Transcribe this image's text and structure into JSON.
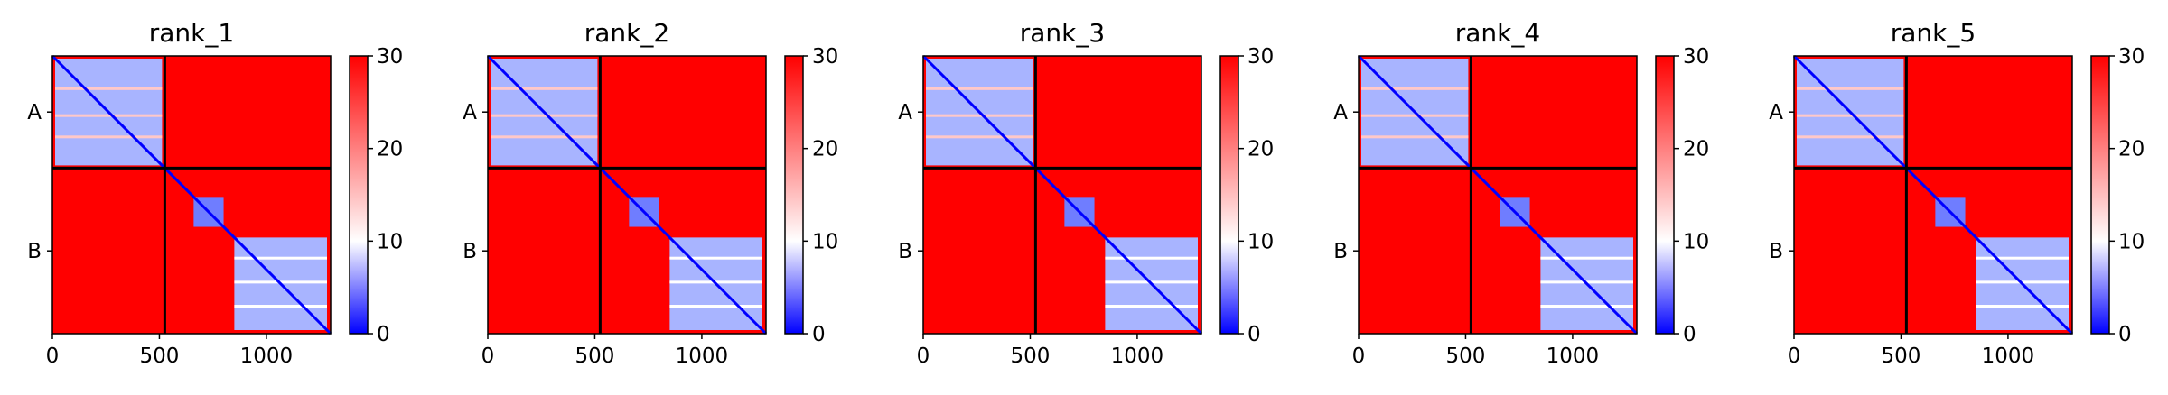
{
  "chart_data": [
    {
      "type": "heatmap",
      "title": "rank_1",
      "x_ticks": [
        0,
        500,
        1000
      ],
      "y_tick_labels": [
        "A",
        "B"
      ],
      "xlim": [
        0,
        1300
      ],
      "chain_boundary": 525,
      "chain_b_domain": 850,
      "colorbar": {
        "min": 0,
        "max": 30,
        "ticks": [
          0,
          10,
          20,
          30
        ]
      }
    },
    {
      "type": "heatmap",
      "title": "rank_2",
      "x_ticks": [
        0,
        500,
        1000
      ],
      "y_tick_labels": [
        "A",
        "B"
      ],
      "xlim": [
        0,
        1300
      ],
      "chain_boundary": 525,
      "chain_b_domain": 850,
      "colorbar": {
        "min": 0,
        "max": 30,
        "ticks": [
          0,
          10,
          20,
          30
        ]
      }
    },
    {
      "type": "heatmap",
      "title": "rank_3",
      "x_ticks": [
        0,
        500,
        1000
      ],
      "y_tick_labels": [
        "A",
        "B"
      ],
      "xlim": [
        0,
        1300
      ],
      "chain_boundary": 525,
      "chain_b_domain": 850,
      "colorbar": {
        "min": 0,
        "max": 30,
        "ticks": [
          0,
          10,
          20,
          30
        ]
      }
    },
    {
      "type": "heatmap",
      "title": "rank_4",
      "x_ticks": [
        0,
        500,
        1000
      ],
      "y_tick_labels": [
        "A",
        "B"
      ],
      "xlim": [
        0,
        1300
      ],
      "chain_boundary": 525,
      "chain_b_domain": 850,
      "colorbar": {
        "min": 0,
        "max": 30,
        "ticks": [
          0,
          10,
          20,
          30
        ]
      }
    },
    {
      "type": "heatmap",
      "title": "rank_5",
      "x_ticks": [
        0,
        500,
        1000
      ],
      "y_tick_labels": [
        "A",
        "B"
      ],
      "xlim": [
        0,
        1300
      ],
      "chain_boundary": 525,
      "chain_b_domain": 850,
      "colorbar": {
        "min": 0,
        "max": 30,
        "ticks": [
          0,
          10,
          20,
          30
        ]
      }
    }
  ],
  "colors": {
    "low": "#0000ff",
    "mid": "#ffffff",
    "high": "#ff0000",
    "divider": "#000000"
  }
}
